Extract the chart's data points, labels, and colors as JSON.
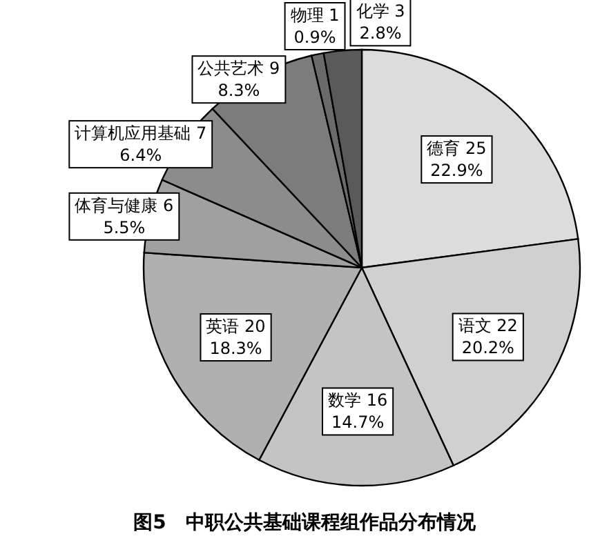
{
  "chart_data": {
    "type": "pie",
    "title": "图5　中职公共基础课程组作品分布情况",
    "categories": [
      "德育 25",
      "语文 22",
      "数学 16",
      "英语 20",
      "体育与健康 6",
      "计算机应用基础 7",
      "公共艺术 9",
      "物理 1",
      "化学 3"
    ],
    "values": [
      22.9,
      20.2,
      14.7,
      18.3,
      5.5,
      6.4,
      8.3,
      0.9,
      2.8
    ],
    "value_labels": [
      "22.9%",
      "20.2%",
      "14.7%",
      "18.3%",
      "5.5%",
      "6.4%",
      "8.3%",
      "0.9%",
      "2.8%"
    ],
    "colors": [
      "#dcdcdc",
      "#d0d0d0",
      "#c4c4c4",
      "#b0b0b0",
      "#a0a0a0",
      "#8c8c8c",
      "#7c7c7c",
      "#6a6a6a",
      "#5a5a5a"
    ]
  }
}
